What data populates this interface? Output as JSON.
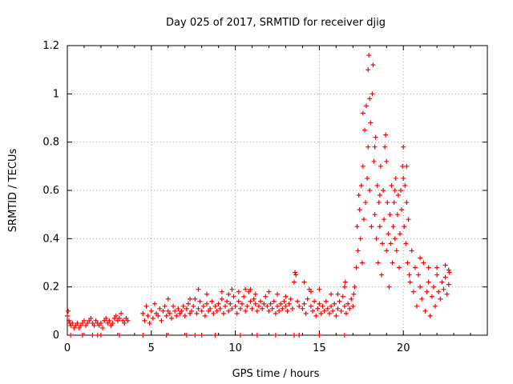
{
  "chart_data": {
    "type": "scatter",
    "title": "Day 025 of 2017, SRMTID for receiver djig",
    "xlabel": "GPS time / hours",
    "ylabel": "SRMTID / TECUs",
    "xlim": [
      0,
      25
    ],
    "ylim": [
      0,
      1.2
    ],
    "grid": true,
    "marker": "+",
    "color": "#ff0000",
    "x_ticks": [
      {
        "value": 0,
        "label": "0"
      },
      {
        "value": 5,
        "label": "5"
      },
      {
        "value": 10,
        "label": "10"
      },
      {
        "value": 15,
        "label": "15"
      },
      {
        "value": 20,
        "label": "20"
      }
    ],
    "y_ticks": [
      {
        "value": 0,
        "label": "0"
      },
      {
        "value": 0.2,
        "label": "0.2"
      },
      {
        "value": 0.4,
        "label": "0.4"
      },
      {
        "value": 0.6,
        "label": "0.6"
      },
      {
        "value": 0.8,
        "label": "0.8"
      },
      {
        "value": 1.0,
        "label": "1"
      },
      {
        "value": 1.2,
        "label": "1.2"
      }
    ],
    "series": [
      {
        "name": "SRMTID",
        "points": [
          [
            0.0,
            0.08
          ],
          [
            0.05,
            0.1
          ],
          [
            0.1,
            0.06
          ],
          [
            0.15,
            0.05
          ],
          [
            0.2,
            0.04
          ],
          [
            0.3,
            0.05
          ],
          [
            0.4,
            0.03
          ],
          [
            0.5,
            0.04
          ],
          [
            0.6,
            0.05
          ],
          [
            0.7,
            0.03
          ],
          [
            0.8,
            0.04
          ],
          [
            0.9,
            0.05
          ],
          [
            1.0,
            0.06
          ],
          [
            1.1,
            0.04
          ],
          [
            1.2,
            0.05
          ],
          [
            1.3,
            0.06
          ],
          [
            1.4,
            0.07
          ],
          [
            1.5,
            0.05
          ],
          [
            1.6,
            0.04
          ],
          [
            1.7,
            0.06
          ],
          [
            1.8,
            0.05
          ],
          [
            1.9,
            0.04
          ],
          [
            2.0,
            0.05
          ],
          [
            2.1,
            0.03
          ],
          [
            2.2,
            0.06
          ],
          [
            2.3,
            0.07
          ],
          [
            2.4,
            0.05
          ],
          [
            2.5,
            0.06
          ],
          [
            2.6,
            0.04
          ],
          [
            2.7,
            0.05
          ],
          [
            2.8,
            0.07
          ],
          [
            2.9,
            0.08
          ],
          [
            3.0,
            0.06
          ],
          [
            3.1,
            0.07
          ],
          [
            3.2,
            0.09
          ],
          [
            3.3,
            0.06
          ],
          [
            3.4,
            0.05
          ],
          [
            3.5,
            0.07
          ],
          [
            3.6,
            0.06
          ],
          [
            0.2,
            0.0
          ],
          [
            0.9,
            0.0
          ],
          [
            1.5,
            0.0
          ],
          [
            1.8,
            0.0
          ],
          [
            2.0,
            0.0
          ],
          [
            3.1,
            0.0
          ],
          [
            4.5,
            0.0
          ],
          [
            5.9,
            0.0
          ],
          [
            7.1,
            0.0
          ],
          [
            7.6,
            0.0
          ],
          [
            8.0,
            0.0
          ],
          [
            8.8,
            0.0
          ],
          [
            10.3,
            0.0
          ],
          [
            11.3,
            0.0
          ],
          [
            12.4,
            0.0
          ],
          [
            13.5,
            0.0
          ],
          [
            13.8,
            0.0
          ],
          [
            15.0,
            0.0
          ],
          [
            16.5,
            0.0
          ],
          [
            4.5,
            0.09
          ],
          [
            4.6,
            0.06
          ],
          [
            4.7,
            0.12
          ],
          [
            4.8,
            0.08
          ],
          [
            4.9,
            0.05
          ],
          [
            5.0,
            0.1
          ],
          [
            5.1,
            0.07
          ],
          [
            5.2,
            0.13
          ],
          [
            5.3,
            0.09
          ],
          [
            5.4,
            0.08
          ],
          [
            5.5,
            0.11
          ],
          [
            5.6,
            0.06
          ],
          [
            5.7,
            0.1
          ],
          [
            5.8,
            0.12
          ],
          [
            5.9,
            0.08
          ],
          [
            6.0,
            0.1
          ],
          [
            6.1,
            0.09
          ],
          [
            6.2,
            0.07
          ],
          [
            6.3,
            0.12
          ],
          [
            6.4,
            0.1
          ],
          [
            6.5,
            0.08
          ],
          [
            6.6,
            0.11
          ],
          [
            6.7,
            0.09
          ],
          [
            6.8,
            0.1
          ],
          [
            6.9,
            0.12
          ],
          [
            7.0,
            0.08
          ],
          [
            7.1,
            0.11
          ],
          [
            7.2,
            0.13
          ],
          [
            7.3,
            0.09
          ],
          [
            7.4,
            0.1
          ],
          [
            7.5,
            0.12
          ],
          [
            7.6,
            0.15
          ],
          [
            7.7,
            0.09
          ],
          [
            7.8,
            0.11
          ],
          [
            7.9,
            0.14
          ],
          [
            8.0,
            0.1
          ],
          [
            8.1,
            0.12
          ],
          [
            8.2,
            0.08
          ],
          [
            8.3,
            0.13
          ],
          [
            8.4,
            0.1
          ],
          [
            8.5,
            0.11
          ],
          [
            8.6,
            0.14
          ],
          [
            8.7,
            0.09
          ],
          [
            8.8,
            0.12
          ],
          [
            8.9,
            0.1
          ],
          [
            9.0,
            0.13
          ],
          [
            9.1,
            0.11
          ],
          [
            9.2,
            0.15
          ],
          [
            9.3,
            0.09
          ],
          [
            9.4,
            0.12
          ],
          [
            9.5,
            0.14
          ],
          [
            9.6,
            0.1
          ],
          [
            9.7,
            0.13
          ],
          [
            9.8,
            0.11
          ],
          [
            9.9,
            0.16
          ],
          [
            10.0,
            0.12
          ],
          [
            10.1,
            0.09
          ],
          [
            10.2,
            0.14
          ],
          [
            10.3,
            0.11
          ],
          [
            10.4,
            0.13
          ],
          [
            10.5,
            0.16
          ],
          [
            10.6,
            0.1
          ],
          [
            10.7,
            0.12
          ],
          [
            10.8,
            0.18
          ],
          [
            10.9,
            0.14
          ],
          [
            11.0,
            0.11
          ],
          [
            11.1,
            0.15
          ],
          [
            11.2,
            0.13
          ],
          [
            11.3,
            0.1
          ],
          [
            11.4,
            0.12
          ],
          [
            11.5,
            0.14
          ],
          [
            11.6,
            0.11
          ],
          [
            11.7,
            0.13
          ],
          [
            11.8,
            0.16
          ],
          [
            11.9,
            0.12
          ],
          [
            12.0,
            0.1
          ],
          [
            12.1,
            0.13
          ],
          [
            12.2,
            0.11
          ],
          [
            12.3,
            0.14
          ],
          [
            12.4,
            0.09
          ],
          [
            12.5,
            0.12
          ],
          [
            12.6,
            0.1
          ],
          [
            12.7,
            0.13
          ],
          [
            12.8,
            0.11
          ],
          [
            12.9,
            0.14
          ],
          [
            13.0,
            0.12
          ],
          [
            13.1,
            0.1
          ],
          [
            13.2,
            0.13
          ],
          [
            13.3,
            0.15
          ],
          [
            13.4,
            0.11
          ],
          [
            13.5,
            0.22
          ],
          [
            13.6,
            0.25
          ],
          [
            13.7,
            0.14
          ],
          [
            13.8,
            0.12
          ],
          [
            6.0,
            0.15
          ],
          [
            7.3,
            0.15
          ],
          [
            7.8,
            0.19
          ],
          [
            8.3,
            0.17
          ],
          [
            9.2,
            0.18
          ],
          [
            9.6,
            0.17
          ],
          [
            9.8,
            0.19
          ],
          [
            10.2,
            0.18
          ],
          [
            10.6,
            0.19
          ],
          [
            10.9,
            0.19
          ],
          [
            11.2,
            0.17
          ],
          [
            12.0,
            0.18
          ],
          [
            12.5,
            0.17
          ],
          [
            13.0,
            0.16
          ],
          [
            13.55,
            0.26
          ],
          [
            14.0,
            0.11
          ],
          [
            14.1,
            0.13
          ],
          [
            14.2,
            0.09
          ],
          [
            14.3,
            0.15
          ],
          [
            14.4,
            0.19
          ],
          [
            14.5,
            0.12
          ],
          [
            14.6,
            0.1
          ],
          [
            14.7,
            0.14
          ],
          [
            14.8,
            0.08
          ],
          [
            14.9,
            0.11
          ],
          [
            15.0,
            0.13
          ],
          [
            15.1,
            0.09
          ],
          [
            15.2,
            0.12
          ],
          [
            15.3,
            0.1
          ],
          [
            15.4,
            0.14
          ],
          [
            15.5,
            0.11
          ],
          [
            15.6,
            0.09
          ],
          [
            15.7,
            0.12
          ],
          [
            15.8,
            0.1
          ],
          [
            15.9,
            0.13
          ],
          [
            16.0,
            0.08
          ],
          [
            16.1,
            0.11
          ],
          [
            16.2,
            0.14
          ],
          [
            16.3,
            0.1
          ],
          [
            16.4,
            0.16
          ],
          [
            16.5,
            0.12
          ],
          [
            16.6,
            0.09
          ],
          [
            16.7,
            0.13
          ],
          [
            16.8,
            0.11
          ],
          [
            16.9,
            0.15
          ],
          [
            17.0,
            0.12
          ],
          [
            17.05,
            0.17
          ],
          [
            14.1,
            0.22
          ],
          [
            14.5,
            0.18
          ],
          [
            15.0,
            0.19
          ],
          [
            15.7,
            0.17
          ],
          [
            16.1,
            0.17
          ],
          [
            16.5,
            0.2
          ],
          [
            16.55,
            0.22
          ],
          [
            17.1,
            0.2
          ],
          [
            17.2,
            0.28
          ],
          [
            17.25,
            0.45
          ],
          [
            17.3,
            0.35
          ],
          [
            17.35,
            0.58
          ],
          [
            17.4,
            0.52
          ],
          [
            17.45,
            0.4
          ],
          [
            17.5,
            0.62
          ],
          [
            17.55,
            0.3
          ],
          [
            17.6,
            0.7
          ],
          [
            17.65,
            0.48
          ],
          [
            17.7,
            0.85
          ],
          [
            17.75,
            0.55
          ],
          [
            17.8,
            0.95
          ],
          [
            17.85,
            0.65
          ],
          [
            17.9,
            0.78
          ],
          [
            17.95,
            1.16
          ],
          [
            18.0,
            0.6
          ],
          [
            18.05,
            0.88
          ],
          [
            18.1,
            0.45
          ],
          [
            18.15,
            1.0
          ],
          [
            18.2,
            1.12
          ],
          [
            18.25,
            0.72
          ],
          [
            18.3,
            0.5
          ],
          [
            18.35,
            0.82
          ],
          [
            18.4,
            0.4
          ],
          [
            18.45,
            0.62
          ],
          [
            18.5,
            0.3
          ],
          [
            18.55,
            0.55
          ],
          [
            18.6,
            0.45
          ],
          [
            18.65,
            0.7
          ],
          [
            18.7,
            0.25
          ],
          [
            18.75,
            0.38
          ],
          [
            18.8,
            0.6
          ],
          [
            18.85,
            0.48
          ],
          [
            18.9,
            0.78
          ],
          [
            18.95,
            0.83
          ],
          [
            19.0,
            0.35
          ],
          [
            19.05,
            0.55
          ],
          [
            19.1,
            0.42
          ],
          [
            19.15,
            0.2
          ],
          [
            19.2,
            0.5
          ],
          [
            19.25,
            0.38
          ],
          [
            19.3,
            0.62
          ],
          [
            19.35,
            0.3
          ],
          [
            19.4,
            0.45
          ],
          [
            19.45,
            0.55
          ],
          [
            19.5,
            0.4
          ],
          [
            19.55,
            0.65
          ],
          [
            19.6,
            0.35
          ],
          [
            19.65,
            0.5
          ],
          [
            19.7,
            0.58
          ],
          [
            19.75,
            0.28
          ],
          [
            19.8,
            0.42
          ],
          [
            19.85,
            0.6
          ],
          [
            19.9,
            0.52
          ],
          [
            19.95,
            0.7
          ],
          [
            20.0,
            0.78
          ],
          [
            20.05,
            0.45
          ],
          [
            20.1,
            0.62
          ],
          [
            20.15,
            0.38
          ],
          [
            20.2,
            0.55
          ],
          [
            20.25,
            0.3
          ],
          [
            20.3,
            0.48
          ],
          [
            20.35,
            0.25
          ],
          [
            17.6,
            0.92
          ],
          [
            17.9,
            1.1
          ],
          [
            18.0,
            0.98
          ],
          [
            18.3,
            0.78
          ],
          [
            18.6,
            0.58
          ],
          [
            19.0,
            0.72
          ],
          [
            19.5,
            0.6
          ],
          [
            20.0,
            0.65
          ],
          [
            20.2,
            0.7
          ],
          [
            20.4,
            0.22
          ],
          [
            20.5,
            0.35
          ],
          [
            20.6,
            0.18
          ],
          [
            20.7,
            0.28
          ],
          [
            20.8,
            0.12
          ],
          [
            20.9,
            0.25
          ],
          [
            21.0,
            0.2
          ],
          [
            21.1,
            0.15
          ],
          [
            21.2,
            0.3
          ],
          [
            21.3,
            0.1
          ],
          [
            21.4,
            0.18
          ],
          [
            21.5,
            0.22
          ],
          [
            21.6,
            0.08
          ],
          [
            21.7,
            0.16
          ],
          [
            21.8,
            0.2
          ],
          [
            21.9,
            0.12
          ],
          [
            22.0,
            0.25
          ],
          [
            22.1,
            0.18
          ],
          [
            22.2,
            0.15
          ],
          [
            22.3,
            0.22
          ],
          [
            22.4,
            0.19
          ],
          [
            22.5,
            0.24
          ],
          [
            22.6,
            0.17
          ],
          [
            22.7,
            0.21
          ],
          [
            22.75,
            0.26
          ],
          [
            21.0,
            0.32
          ],
          [
            21.5,
            0.28
          ],
          [
            22.0,
            0.28
          ],
          [
            22.5,
            0.29
          ],
          [
            22.7,
            0.27
          ]
        ]
      }
    ]
  }
}
